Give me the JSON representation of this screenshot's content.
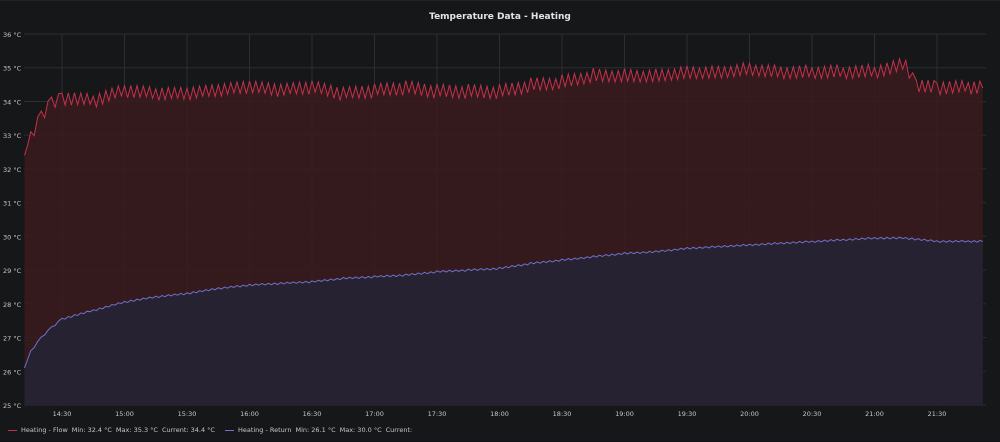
{
  "panel": {
    "title": "Temperature Data - Heating"
  },
  "chart_data": {
    "type": "line",
    "title": "Temperature Data - Heating",
    "xlabel": "",
    "ylabel": "",
    "ylim": [
      25,
      36
    ],
    "y_ticks": [
      "25 °C",
      "26 °C",
      "27 °C",
      "28 °C",
      "29 °C",
      "30 °C",
      "31 °C",
      "32 °C",
      "33 °C",
      "34 °C",
      "35 °C",
      "36 °C"
    ],
    "x_ticks": [
      "14:30",
      "15:00",
      "15:30",
      "16:00",
      "16:30",
      "17:00",
      "17:30",
      "18:00",
      "18:30",
      "19:00",
      "19:30",
      "20:00",
      "20:30",
      "21:00",
      "21:30"
    ],
    "grid": true,
    "legend_position": "bottom-left",
    "series": [
      {
        "name": "Heating - Flow",
        "color": "#c4314b",
        "fill_color": "#3a1a1f",
        "x": [
          "14:12",
          "14:15",
          "14:20",
          "14:25",
          "14:30",
          "14:45",
          "15:00",
          "15:15",
          "15:30",
          "15:45",
          "16:00",
          "16:15",
          "16:30",
          "16:45",
          "17:00",
          "17:15",
          "17:30",
          "17:45",
          "18:00",
          "18:15",
          "18:30",
          "18:45",
          "19:00",
          "19:15",
          "19:30",
          "19:45",
          "20:00",
          "20:15",
          "20:30",
          "20:45",
          "21:00",
          "21:15",
          "21:20",
          "21:30",
          "21:45",
          "21:52"
        ],
        "values": [
          32.4,
          33.0,
          33.6,
          34.0,
          34.1,
          34.0,
          34.3,
          34.2,
          34.2,
          34.3,
          34.4,
          34.3,
          34.4,
          34.2,
          34.3,
          34.4,
          34.3,
          34.3,
          34.3,
          34.5,
          34.6,
          34.8,
          34.8,
          34.8,
          34.9,
          34.9,
          35.0,
          34.9,
          34.9,
          34.9,
          34.9,
          35.1,
          34.5,
          34.4,
          34.4,
          34.4
        ],
        "stats": {
          "min": "Min: 32.4 °C",
          "max": "Max: 35.3 °C",
          "current": "Current: 34.4 °C"
        }
      },
      {
        "name": "Heating - Return",
        "color": "#7070c8",
        "fill_color": "#252436",
        "x": [
          "14:12",
          "14:15",
          "14:20",
          "14:25",
          "14:30",
          "14:45",
          "15:00",
          "15:15",
          "15:30",
          "15:45",
          "16:00",
          "16:15",
          "16:30",
          "16:45",
          "17:00",
          "17:15",
          "17:30",
          "17:45",
          "18:00",
          "18:15",
          "18:30",
          "18:45",
          "19:00",
          "19:15",
          "19:30",
          "19:45",
          "20:00",
          "20:15",
          "20:30",
          "20:45",
          "21:00",
          "21:15",
          "21:30",
          "21:45",
          "21:52"
        ],
        "values": [
          26.1,
          26.6,
          27.0,
          27.3,
          27.55,
          27.8,
          28.05,
          28.2,
          28.3,
          28.45,
          28.55,
          28.6,
          28.65,
          28.75,
          28.8,
          28.85,
          28.95,
          29.0,
          29.05,
          29.2,
          29.3,
          29.4,
          29.5,
          29.55,
          29.65,
          29.7,
          29.75,
          29.8,
          29.85,
          29.9,
          29.95,
          29.95,
          29.85,
          29.85,
          29.85
        ],
        "stats": {
          "min": "Min: 26.1 °C",
          "max": "Max: 30.0 °C",
          "current": "Current:"
        }
      }
    ]
  }
}
